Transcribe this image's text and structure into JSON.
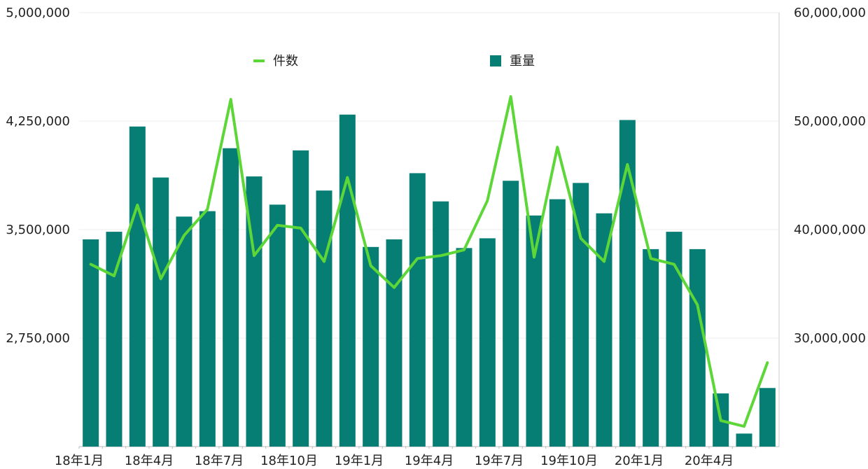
{
  "chart_data": {
    "type": "bar",
    "categories": [
      "18年1月",
      "18年2月",
      "18年3月",
      "18年4月",
      "18年5月",
      "18年6月",
      "18年7月",
      "18年8月",
      "18年9月",
      "18年10月",
      "18年11月",
      "18年12月",
      "19年1月",
      "19年2月",
      "19年3月",
      "19年4月",
      "19年5月",
      "19年6月",
      "19年7月",
      "19年8月",
      "19年9月",
      "19年10月",
      "19年11月",
      "19年12月",
      "20年1月",
      "20年2月",
      "20年3月",
      "20年4月",
      "20年5月",
      "20年6月"
    ],
    "x_tick_labels": [
      "18年1月",
      "18年4月",
      "18年7月",
      "18年10月",
      "19年1月",
      "19年4月",
      "19年7月",
      "19年10月",
      "20年1月",
      "20年4月"
    ],
    "x_tick_every": 3,
    "left_axis": {
      "ylim": [
        2000000,
        5000000
      ],
      "ticks": [
        "2,750,000",
        "3,500,000",
        "4,250,000",
        "5,000,000"
      ],
      "tick_values": [
        2750000,
        3500000,
        4250000,
        5000000
      ]
    },
    "right_axis": {
      "ylim": [
        20000000,
        60000000
      ],
      "ticks": [
        "30,000,000",
        "40,000,000",
        "50,000,000",
        "60,000,000"
      ],
      "tick_values": [
        30000000,
        40000000,
        50000000,
        60000000
      ]
    },
    "grid": true,
    "legend_position": "top",
    "series": [
      {
        "name": "件数",
        "type": "line",
        "axis": "left",
        "color": "#5dd638",
        "values": [
          3260000,
          3180000,
          3670000,
          3160000,
          3460000,
          3640000,
          4400000,
          3320000,
          3530000,
          3510000,
          3280000,
          3860000,
          3250000,
          3100000,
          3300000,
          3320000,
          3360000,
          3700000,
          4420000,
          3310000,
          4070000,
          3440000,
          3280000,
          3950000,
          3300000,
          3260000,
          2980000,
          2180000,
          2140000,
          2580000
        ]
      },
      {
        "name": "重量",
        "type": "bar",
        "axis": "right",
        "color": "#067e74",
        "values": [
          39100000,
          39800000,
          49500000,
          44800000,
          41200000,
          41700000,
          47500000,
          44900000,
          42300000,
          47300000,
          43600000,
          50600000,
          38400000,
          39100000,
          45200000,
          42600000,
          38300000,
          39200000,
          44500000,
          41300000,
          42800000,
          44300000,
          41500000,
          50100000,
          38200000,
          39800000,
          38200000,
          24900000,
          21200000,
          25400000
        ]
      }
    ]
  }
}
